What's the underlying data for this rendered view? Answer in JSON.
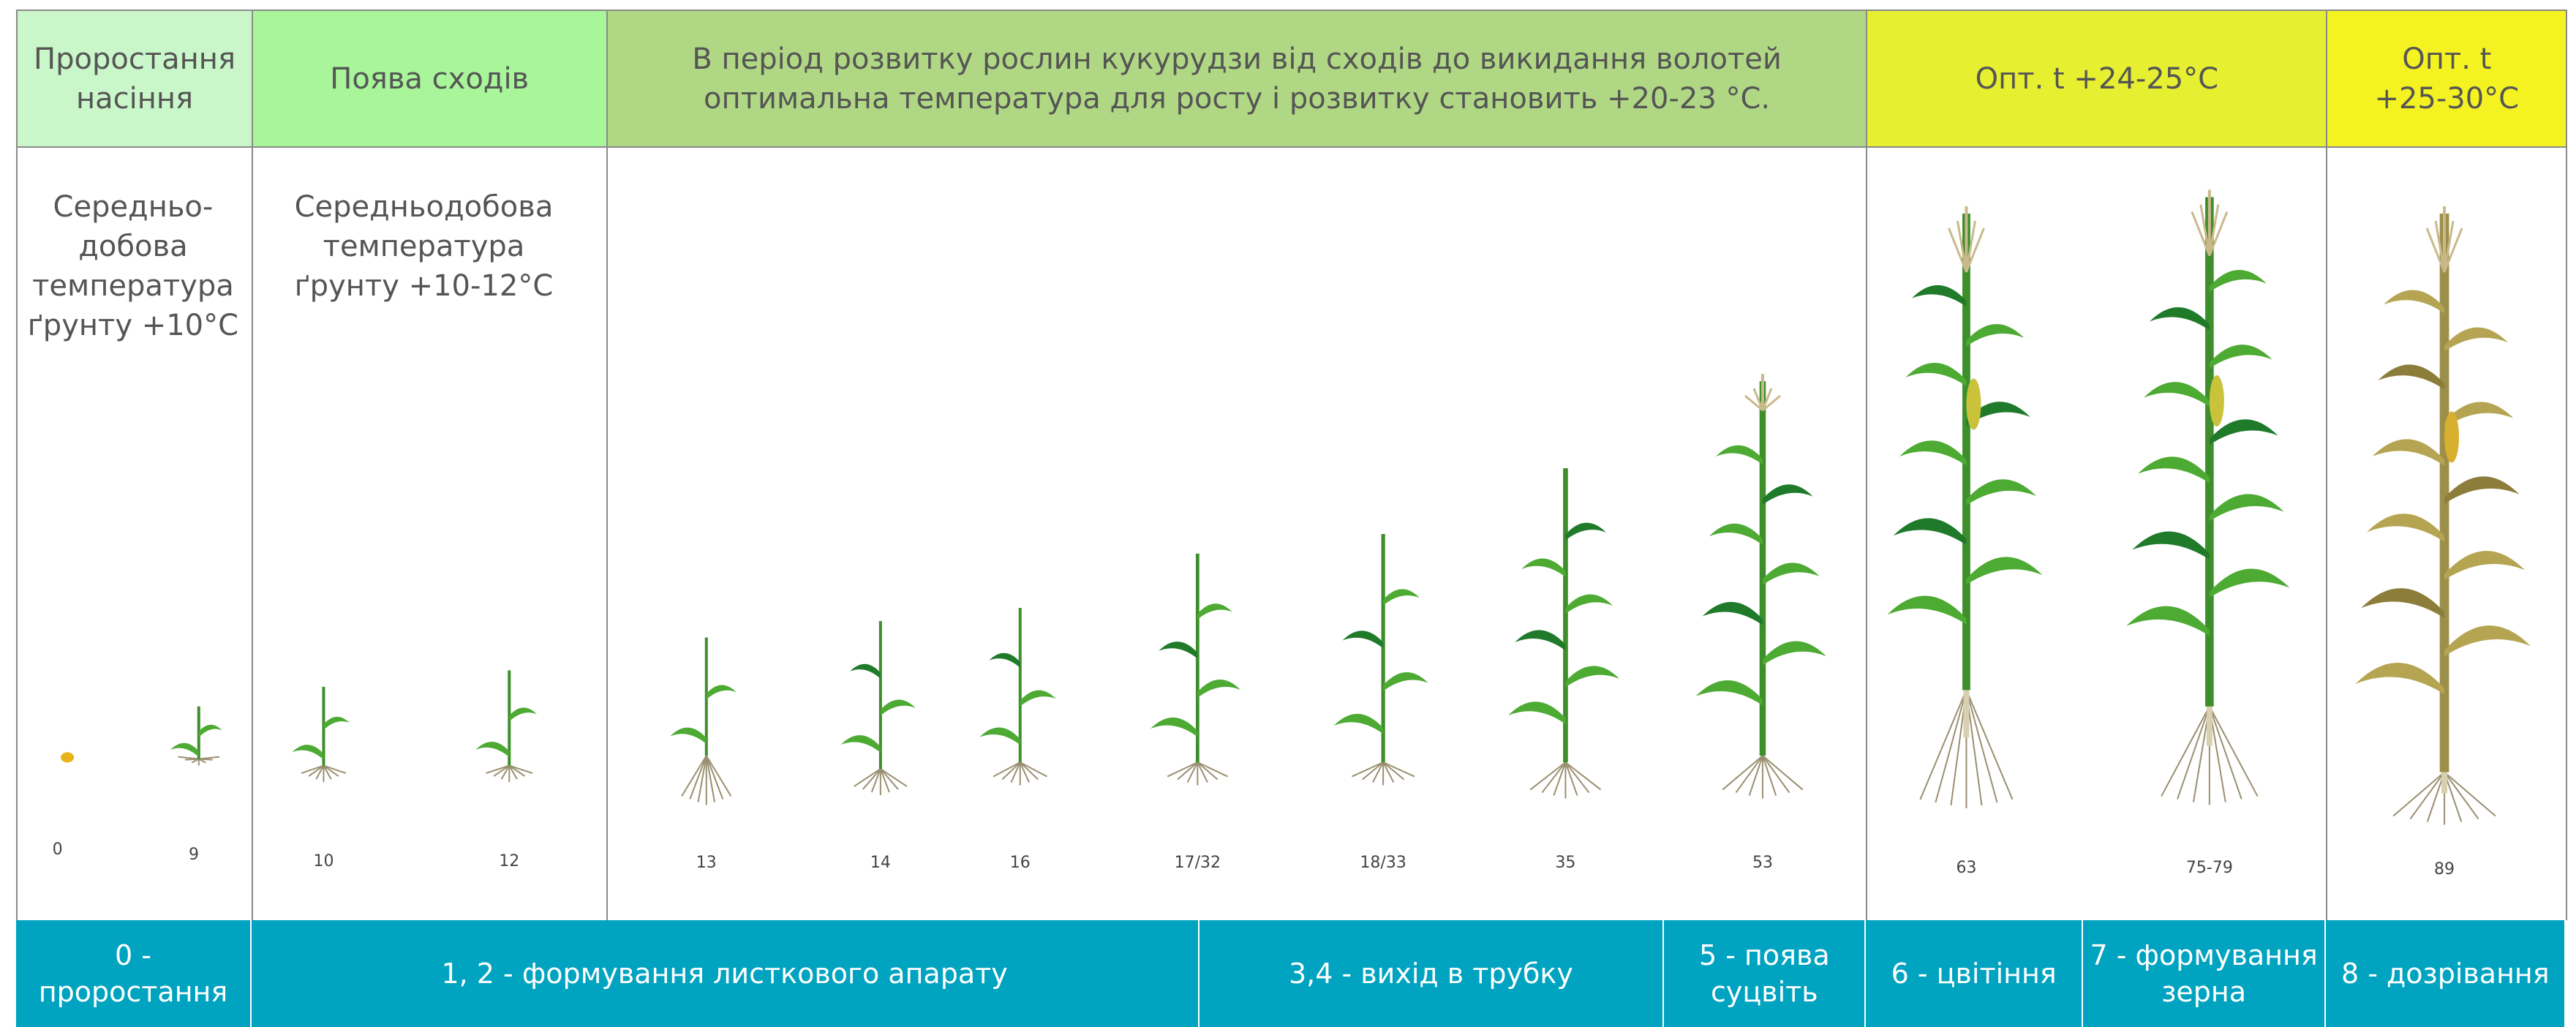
{
  "header": [
    {
      "lines": [
        "Проростання",
        "насіння"
      ]
    },
    {
      "lines": [
        "Поява сходів"
      ]
    },
    {
      "lines": [
        "В період розвитку рослин кукурудзи від сходів до викидання волотей",
        "оптимальна температура для росту і розвитку становить +20-23 °С."
      ]
    },
    {
      "lines": [
        "Опт. t +24-25°С"
      ]
    },
    {
      "lines": [
        "Опт. t",
        "+25-30°С"
      ]
    }
  ],
  "notes": [
    {
      "lines": [
        "Середньо-",
        "добова",
        "температура",
        "ґрунту +10°С"
      ]
    },
    {
      "lines": [
        "Середньодобова",
        "температура",
        "ґрунту +10-12°С"
      ]
    }
  ],
  "stages": [
    "0",
    "9",
    "10",
    "12",
    "13",
    "14",
    "16",
    "17/32",
    "18/33",
    "35",
    "53",
    "63",
    "75-79",
    "89"
  ],
  "phases": [
    {
      "lines": [
        "0 - проростання"
      ]
    },
    {
      "lines": [
        "1, 2 - формування листкового апарату"
      ]
    },
    {
      "lines": [
        "3,4 - вихід в трубку"
      ]
    },
    {
      "lines": [
        "5 - поява",
        "суцвіть"
      ]
    },
    {
      "lines": [
        "6 - цвітіння"
      ]
    },
    {
      "lines": [
        "7 - формування",
        "зерна"
      ]
    },
    {
      "lines": [
        "8 - дозрівання"
      ]
    }
  ]
}
